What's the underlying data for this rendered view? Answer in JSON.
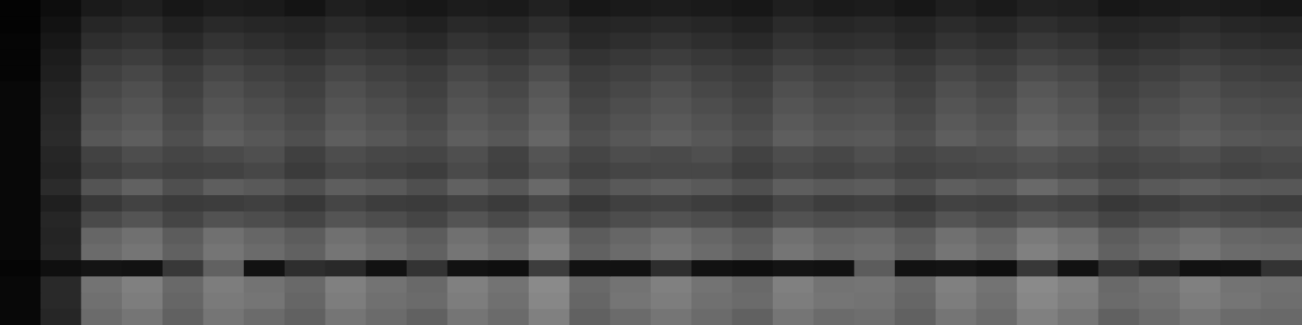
{
  "chart_data": {
    "type": "heatmap",
    "tick_labels": false,
    "zlim": [
      0,
      100
    ],
    "cells": [
      [
        1,
        5,
        10,
        12,
        9,
        11,
        10,
        8,
        12,
        10,
        9,
        11,
        10,
        13,
        9,
        10,
        11,
        10,
        9,
        12,
        10,
        11,
        9,
        12,
        10,
        13,
        12,
        9,
        10,
        11,
        10,
        9
      ],
      [
        1,
        7,
        15,
        17,
        13,
        16,
        15,
        14,
        17,
        15,
        13,
        16,
        15,
        18,
        14,
        15,
        16,
        15,
        13,
        17,
        15,
        16,
        14,
        17,
        15,
        18,
        16,
        14,
        15,
        17,
        15,
        14
      ],
      [
        2,
        9,
        18,
        20,
        16,
        20,
        18,
        16,
        20,
        18,
        16,
        20,
        18,
        22,
        16,
        18,
        20,
        18,
        16,
        20,
        18,
        19,
        16,
        20,
        18,
        22,
        20,
        16,
        18,
        20,
        18,
        17
      ],
      [
        2,
        11,
        22,
        24,
        20,
        24,
        22,
        20,
        24,
        22,
        20,
        24,
        22,
        26,
        20,
        22,
        24,
        22,
        20,
        24,
        22,
        23,
        20,
        24,
        22,
        26,
        24,
        20,
        22,
        24,
        22,
        21
      ],
      [
        2,
        12,
        25,
        28,
        23,
        28,
        25,
        23,
        28,
        25,
        23,
        28,
        25,
        30,
        23,
        25,
        28,
        25,
        23,
        28,
        25,
        26,
        23,
        28,
        25,
        30,
        28,
        23,
        25,
        28,
        25,
        24
      ],
      [
        3,
        14,
        28,
        31,
        25,
        31,
        28,
        25,
        31,
        28,
        25,
        31,
        28,
        34,
        25,
        28,
        31,
        28,
        25,
        31,
        28,
        29,
        25,
        31,
        28,
        34,
        31,
        25,
        28,
        31,
        28,
        27
      ],
      [
        3,
        15,
        30,
        33,
        27,
        33,
        30,
        27,
        33,
        30,
        27,
        33,
        30,
        36,
        27,
        30,
        33,
        30,
        27,
        33,
        30,
        31,
        27,
        33,
        30,
        36,
        33,
        27,
        30,
        33,
        30,
        29
      ],
      [
        3,
        16,
        32,
        35,
        29,
        35,
        32,
        29,
        35,
        32,
        29,
        35,
        32,
        38,
        29,
        32,
        35,
        32,
        29,
        35,
        32,
        33,
        29,
        35,
        32,
        38,
        35,
        29,
        32,
        35,
        32,
        31
      ],
      [
        3,
        17,
        34,
        37,
        31,
        37,
        34,
        31,
        37,
        34,
        31,
        37,
        34,
        40,
        31,
        34,
        37,
        34,
        31,
        37,
        34,
        35,
        31,
        37,
        34,
        40,
        37,
        31,
        34,
        37,
        34,
        33
      ],
      [
        3,
        15,
        26,
        30,
        27,
        29,
        31,
        25,
        30,
        28,
        27,
        31,
        26,
        33,
        27,
        30,
        29,
        31,
        26,
        30,
        28,
        31,
        27,
        29,
        30,
        33,
        30,
        27,
        29,
        31,
        28,
        29
      ],
      [
        3,
        14,
        24,
        27,
        25,
        26,
        28,
        23,
        28,
        26,
        24,
        29,
        25,
        31,
        25,
        27,
        28,
        28,
        24,
        28,
        26,
        28,
        25,
        27,
        28,
        30,
        28,
        25,
        27,
        28,
        26,
        27
      ],
      [
        3,
        17,
        33,
        38,
        31,
        37,
        35,
        31,
        37,
        35,
        31,
        38,
        34,
        41,
        31,
        35,
        37,
        35,
        31,
        37,
        35,
        36,
        31,
        37,
        35,
        41,
        37,
        31,
        35,
        37,
        35,
        34
      ],
      [
        3,
        12,
        22,
        26,
        23,
        24,
        25,
        22,
        27,
        24,
        23,
        26,
        23,
        28,
        22,
        25,
        26,
        24,
        22,
        27,
        24,
        25,
        22,
        26,
        25,
        28,
        26,
        22,
        24,
        26,
        25,
        24
      ],
      [
        3,
        15,
        29,
        33,
        27,
        32,
        30,
        27,
        33,
        30,
        27,
        33,
        29,
        35,
        27,
        30,
        32,
        30,
        27,
        32,
        30,
        31,
        27,
        33,
        30,
        35,
        32,
        27,
        30,
        32,
        30,
        29
      ],
      [
        3,
        14,
        40,
        44,
        36,
        44,
        40,
        36,
        44,
        40,
        36,
        44,
        40,
        48,
        36,
        40,
        44,
        40,
        36,
        44,
        40,
        41,
        36,
        44,
        40,
        48,
        44,
        36,
        40,
        44,
        40,
        39
      ],
      [
        3,
        15,
        42,
        46,
        38,
        46,
        42,
        38,
        46,
        42,
        38,
        46,
        42,
        50,
        38,
        42,
        46,
        42,
        38,
        46,
        42,
        43,
        38,
        46,
        42,
        50,
        46,
        38,
        42,
        46,
        42,
        41
      ],
      [
        2,
        6,
        8,
        7,
        22,
        38,
        7,
        18,
        16,
        7,
        20,
        7,
        6,
        24,
        7,
        7,
        18,
        7,
        6,
        8,
        7,
        36,
        7,
        8,
        6,
        22,
        7,
        20,
        14,
        7,
        8,
        20
      ],
      [
        3,
        16,
        45,
        50,
        41,
        49,
        45,
        41,
        50,
        45,
        41,
        50,
        45,
        54,
        41,
        45,
        50,
        45,
        41,
        50,
        45,
        46,
        41,
        50,
        45,
        54,
        50,
        41,
        45,
        50,
        45,
        44
      ],
      [
        3,
        16,
        44,
        49,
        40,
        48,
        46,
        40,
        49,
        44,
        42,
        49,
        44,
        53,
        40,
        46,
        49,
        44,
        42,
        49,
        46,
        45,
        40,
        49,
        44,
        53,
        49,
        42,
        44,
        49,
        46,
        43
      ],
      [
        3,
        15,
        42,
        46,
        38,
        46,
        42,
        38,
        46,
        42,
        38,
        46,
        42,
        50,
        38,
        42,
        46,
        42,
        38,
        46,
        42,
        43,
        38,
        46,
        42,
        50,
        46,
        38,
        42,
        46,
        42,
        41
      ]
    ]
  }
}
